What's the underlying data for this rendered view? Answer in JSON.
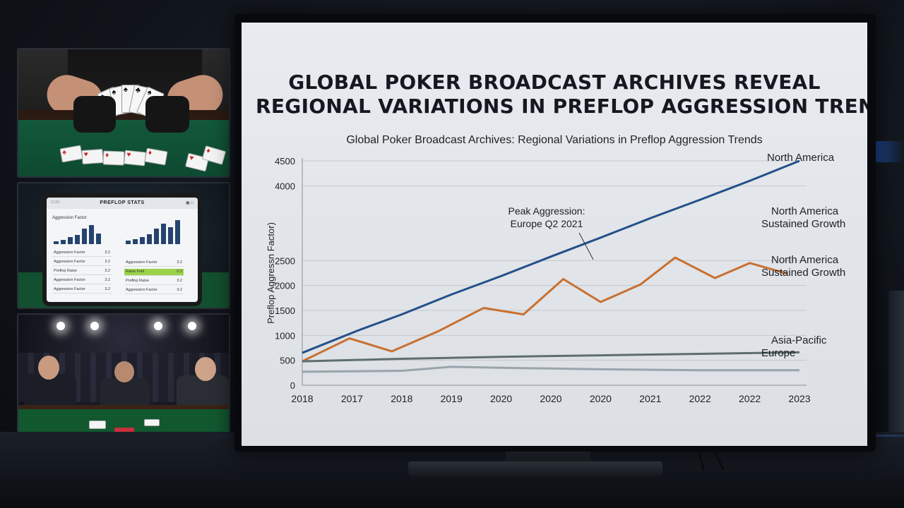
{
  "headline": {
    "line1": "GLOBAL POKER BROADCAST ARCHIVES REVEAL",
    "line2": "REGIONAL VARIATIONS IN PREFLOP AGGRESSION TRENDS"
  },
  "chart_data": {
    "type": "line",
    "title": "Global Poker Broadcast Archives: Regional Variations in Preflop Aggression Trends",
    "xlabel": "",
    "ylabel": "Preflop Aggressn Factor)",
    "ylim": [
      0,
      4500
    ],
    "yticks": [
      0,
      500,
      1000,
      1500,
      2000,
      2500,
      4000,
      4500
    ],
    "xtick_labels": [
      "2018",
      "2017",
      "2018",
      "2019",
      "2020",
      "2020",
      "2020",
      "2021",
      "2022",
      "2022",
      "2023"
    ],
    "grid": true,
    "series": [
      {
        "name": "North America",
        "color": "#23508a",
        "x": [
          0,
          2.2,
          4,
          6,
          8,
          10,
          12,
          14,
          16,
          18,
          20
        ],
        "values": [
          650,
          1090,
          1420,
          1820,
          2190,
          2580,
          2960,
          3350,
          3720,
          4100,
          4500
        ]
      },
      {
        "name": "North America Sustained Growth",
        "color": "#c87030",
        "x": [
          0,
          1.9,
          3.6,
          5.5,
          7.3,
          8.9,
          10.5,
          12,
          13.6,
          15,
          16.6,
          18,
          19.5
        ],
        "values": [
          480,
          940,
          680,
          1090,
          1550,
          1420,
          2130,
          1670,
          2020,
          2560,
          2150,
          2450,
          2240
        ]
      },
      {
        "name": "Asia-Pacific",
        "color": "#5e6e70",
        "x": [
          0,
          4,
          8,
          12,
          16,
          20
        ],
        "values": [
          480,
          530,
          570,
          600,
          630,
          660
        ]
      },
      {
        "name": "Europe",
        "color": "#9aa4ac",
        "x": [
          0,
          4,
          6,
          8,
          12,
          16,
          20
        ],
        "values": [
          270,
          290,
          370,
          350,
          320,
          300,
          300
        ]
      }
    ],
    "series_labels": [
      {
        "text": "North America"
      },
      {
        "text": "North America\nSustained Growth"
      },
      {
        "text": "North America\nSustained Growth"
      },
      {
        "text": "Asia-Pacific\nEurope"
      }
    ],
    "annotation": {
      "text": "Peak Aggression:\nEurope Q2 2021"
    }
  },
  "panel_tablet": {
    "header_title": "PREFLOP STATS",
    "header_left": "□ □□",
    "header_right": "▣ □",
    "section_label": "Aggression Factor",
    "rows_left": [
      {
        "label": "Aggression Factor",
        "value": "3.2"
      },
      {
        "label": "Aggression Factor",
        "value": "3.2"
      },
      {
        "label": "Preflop Raise",
        "value": "3.2"
      },
      {
        "label": "Aggression Factor",
        "value": "3.2"
      },
      {
        "label": "Aggression Factor",
        "value": "3.2"
      }
    ],
    "rows_right": [
      {
        "label": "Aggression Factor",
        "value": "3.2"
      },
      {
        "label": "Raise Fold",
        "value": "0.2"
      },
      {
        "label": "Preflop Raise",
        "value": "3.2"
      },
      {
        "label": "Aggression Factor",
        "value": "3.2"
      }
    ],
    "bars_left": [
      0.15,
      0.2,
      0.35,
      0.45,
      0.8,
      0.95,
      0.55
    ],
    "bars_right": [
      0.15,
      0.2,
      0.3,
      0.4,
      0.65,
      0.85,
      0.7,
      1.0
    ]
  }
}
